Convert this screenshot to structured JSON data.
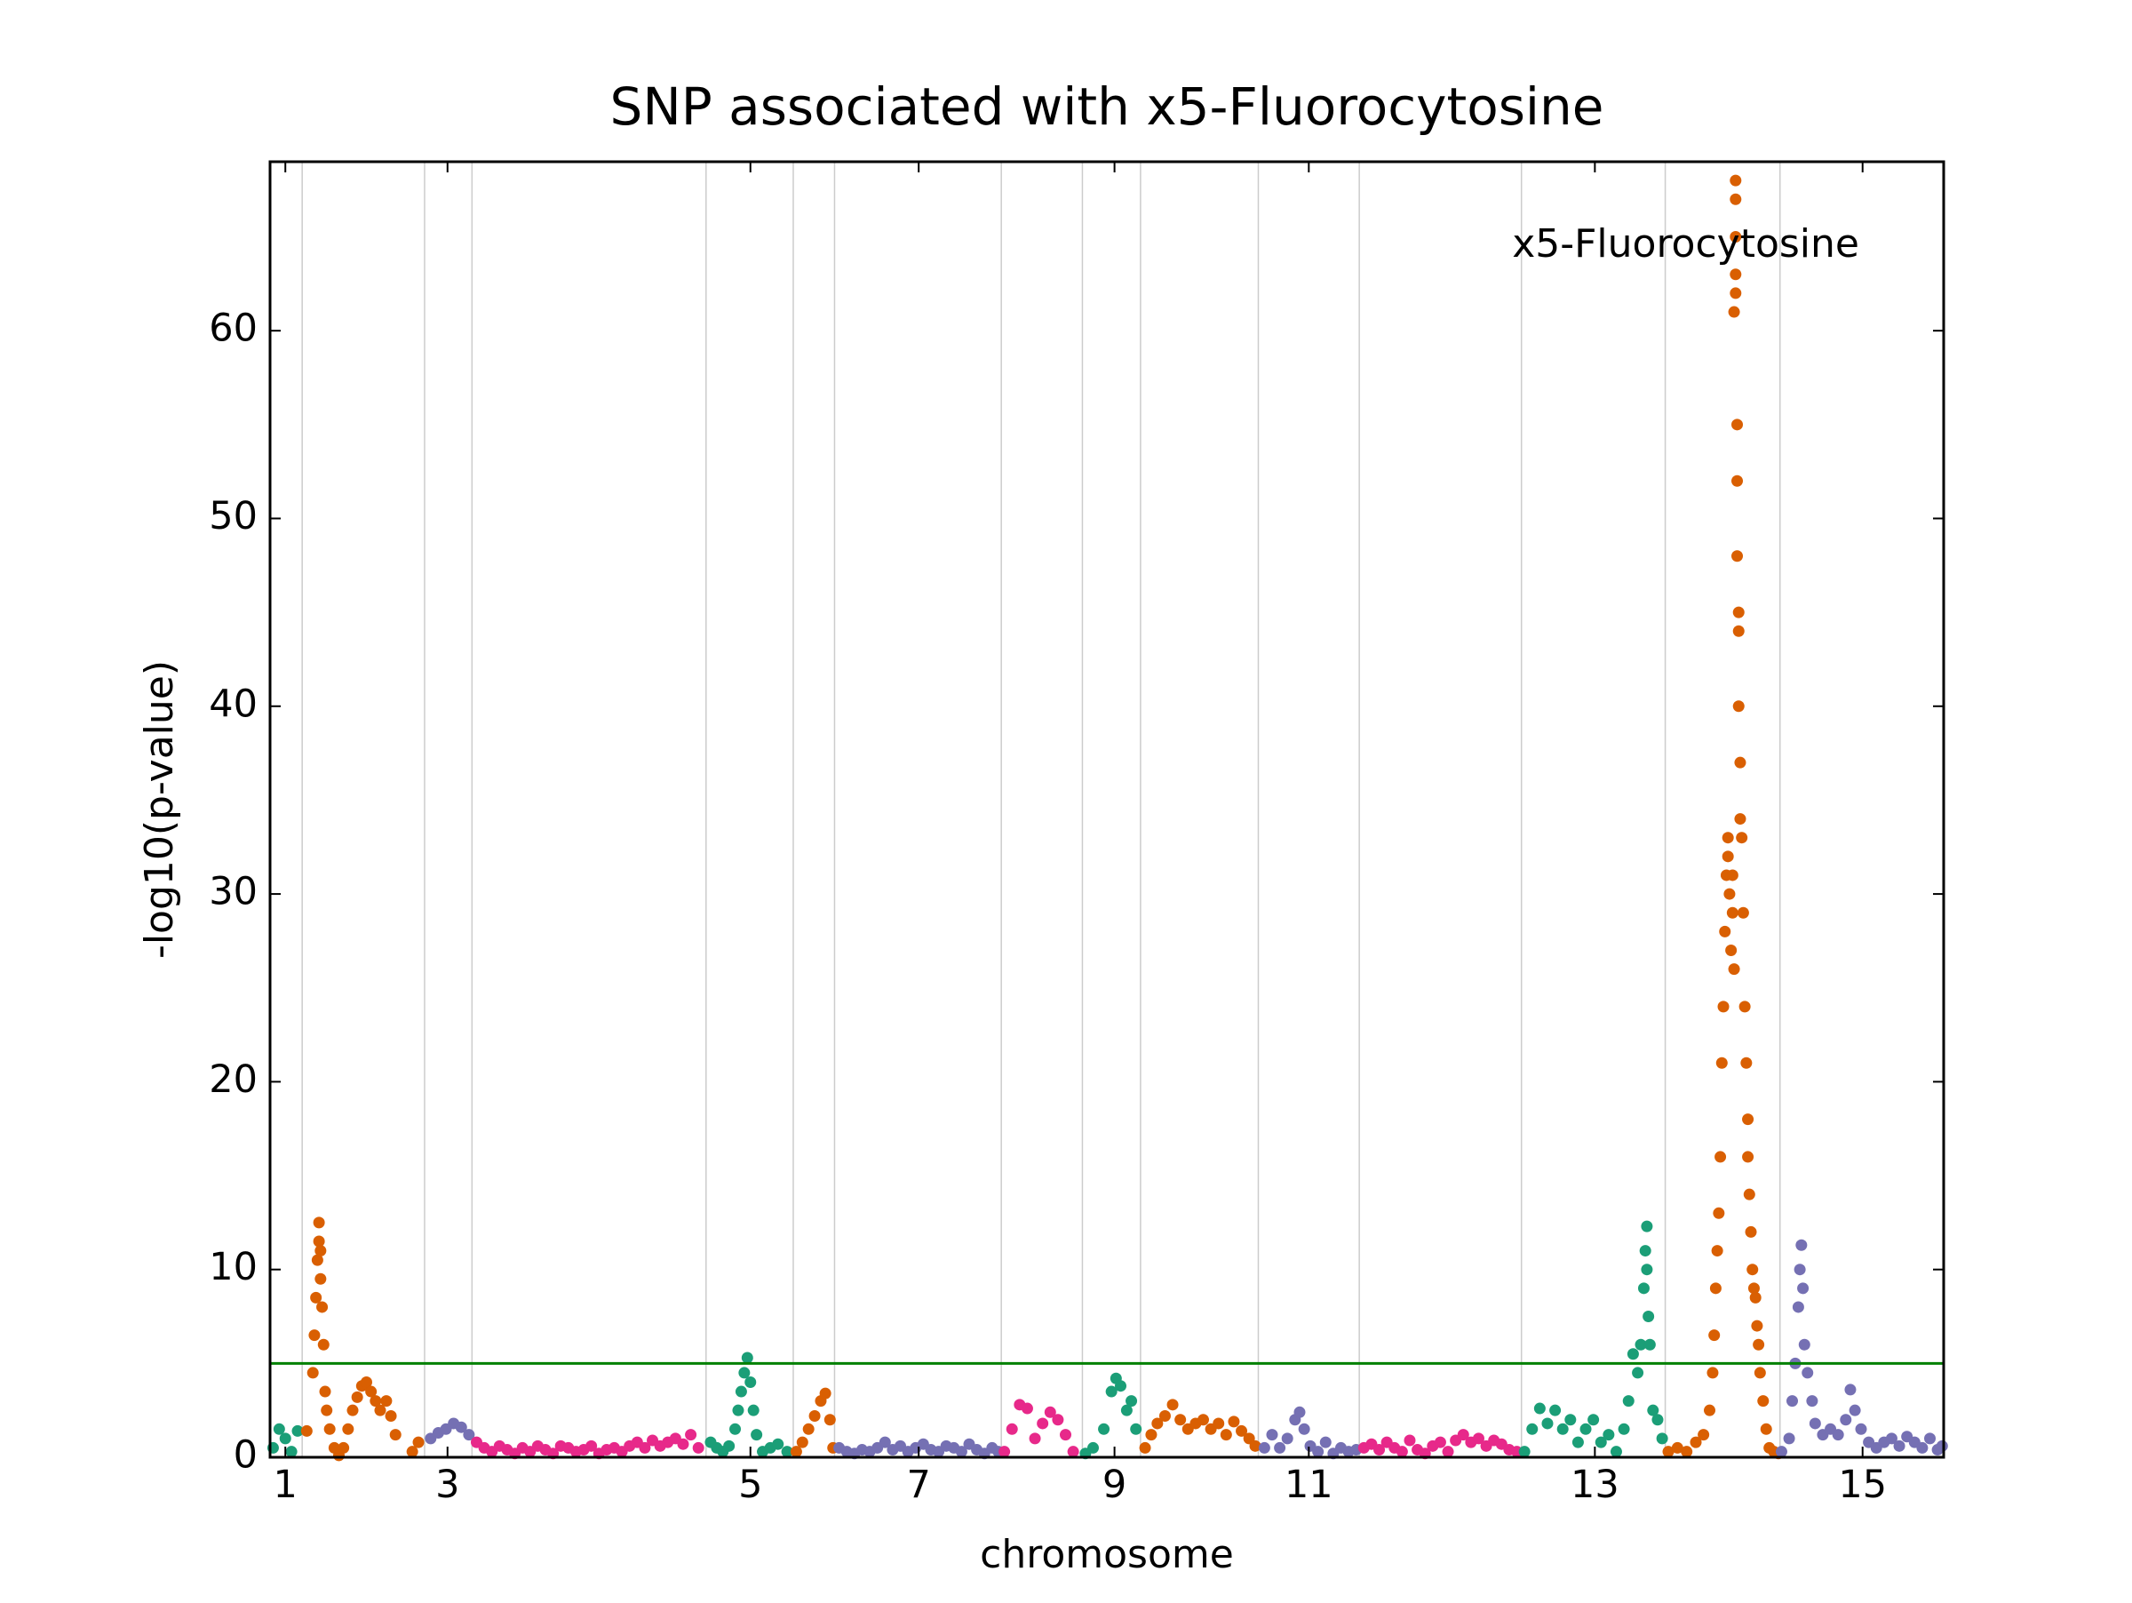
{
  "chart_data": {
    "type": "scatter",
    "title": "SNP associated with x5-Fluorocytosine",
    "xlabel": "chromosome",
    "ylabel": "-log10(p-value)",
    "annotation": "x5-Fluorocytosine",
    "xlim": [
      0,
      10.94
    ],
    "ylim": [
      0,
      69
    ],
    "xticks": [
      {
        "value": 0.1,
        "label": "1"
      },
      {
        "value": 1.16,
        "label": "3"
      },
      {
        "value": 3.14,
        "label": "5"
      },
      {
        "value": 4.24,
        "label": "7"
      },
      {
        "value": 5.52,
        "label": "9"
      },
      {
        "value": 6.79,
        "label": "11"
      },
      {
        "value": 8.66,
        "label": "13"
      },
      {
        "value": 10.41,
        "label": "15"
      }
    ],
    "yticks": [
      0,
      10,
      20,
      30,
      40,
      50,
      60
    ],
    "chromosome_boundaries": [
      0.21,
      1.01,
      1.32,
      2.85,
      3.42,
      3.69,
      4.78,
      5.31,
      5.69,
      6.46,
      7.12,
      8.18,
      9.12,
      9.87
    ],
    "boundary_color": "#cccccc",
    "threshold": 5,
    "threshold_color": "#008000",
    "series": [
      {
        "color": "#1b9e77",
        "x": [
          0.02,
          0.06,
          0.1,
          0.14,
          0.18
        ],
        "values": [
          0.5,
          1.5,
          1.0,
          0.3,
          1.4
        ]
      },
      {
        "color": "#d95f02",
        "x": [
          0.24,
          0.28,
          0.29,
          0.3,
          0.31,
          0.32,
          0.32,
          0.33,
          0.33,
          0.34,
          0.35,
          0.36,
          0.37,
          0.39,
          0.42,
          0.45,
          0.48,
          0.51,
          0.54,
          0.57,
          0.6,
          0.63,
          0.66,
          0.69,
          0.72,
          0.76,
          0.79,
          0.82,
          0.93,
          0.97
        ],
        "values": [
          1.4,
          4.5,
          6.5,
          8.5,
          10.5,
          12.5,
          11.5,
          9.5,
          11,
          8,
          6,
          3.5,
          2.5,
          1.5,
          0.5,
          0.1,
          0.5,
          1.5,
          2.5,
          3.2,
          3.8,
          4,
          3.5,
          3,
          2.5,
          3,
          2.2,
          1.2,
          0.3,
          0.8
        ]
      },
      {
        "color": "#7570b3",
        "x": [
          1.05,
          1.1,
          1.15,
          1.2,
          1.25,
          1.3
        ],
        "values": [
          1.0,
          1.3,
          1.5,
          1.8,
          1.6,
          1.2
        ]
      },
      {
        "color": "#e7298a",
        "x": [
          1.35,
          1.4,
          1.45,
          1.5,
          1.55,
          1.6,
          1.65,
          1.7,
          1.75,
          1.8,
          1.85,
          1.9,
          1.95,
          2.0,
          2.05,
          2.1,
          2.15,
          2.2,
          2.25,
          2.3,
          2.35,
          2.4,
          2.45,
          2.5,
          2.55,
          2.6,
          2.65,
          2.7,
          2.75,
          2.8
        ],
        "values": [
          0.8,
          0.5,
          0.3,
          0.6,
          0.4,
          0.2,
          0.5,
          0.3,
          0.6,
          0.4,
          0.2,
          0.6,
          0.5,
          0.3,
          0.4,
          0.6,
          0.2,
          0.4,
          0.5,
          0.3,
          0.6,
          0.8,
          0.5,
          0.9,
          0.6,
          0.8,
          1.0,
          0.7,
          1.2,
          0.5
        ]
      },
      {
        "color": "#1b9e77",
        "x": [
          2.88,
          2.92,
          2.96,
          3.0,
          3.04,
          3.06,
          3.08,
          3.1,
          3.12,
          3.14,
          3.16,
          3.18,
          3.22,
          3.27,
          3.32,
          3.38
        ],
        "values": [
          0.8,
          0.5,
          0.3,
          0.6,
          1.5,
          2.5,
          3.5,
          4.5,
          5.3,
          4.0,
          2.5,
          1.2,
          0.3,
          0.5,
          0.7,
          0.3
        ]
      },
      {
        "color": "#d95f02",
        "x": [
          3.44,
          3.48,
          3.52,
          3.56,
          3.6,
          3.63,
          3.66,
          3.68
        ],
        "values": [
          0.3,
          0.8,
          1.5,
          2.2,
          3.0,
          3.4,
          2,
          0.5
        ]
      },
      {
        "color": "#7570b3",
        "x": [
          3.72,
          3.77,
          3.82,
          3.87,
          3.92,
          3.97,
          4.02,
          4.07,
          4.12,
          4.17,
          4.22,
          4.27,
          4.32,
          4.37,
          4.42,
          4.47,
          4.52,
          4.57,
          4.62,
          4.67,
          4.72,
          4.76
        ],
        "values": [
          0.5,
          0.3,
          0.2,
          0.4,
          0.3,
          0.5,
          0.8,
          0.4,
          0.6,
          0.3,
          0.5,
          0.7,
          0.4,
          0.3,
          0.6,
          0.5,
          0.3,
          0.7,
          0.4,
          0.2,
          0.5,
          0.3
        ]
      },
      {
        "color": "#e7298a",
        "x": [
          4.8,
          4.85,
          4.9,
          4.95,
          5.0,
          5.05,
          5.1,
          5.15,
          5.2,
          5.25
        ],
        "values": [
          0.3,
          1.5,
          2.8,
          2.6,
          1,
          1.8,
          2.4,
          2,
          1.2,
          0.3
        ]
      },
      {
        "color": "#1b9e77",
        "x": [
          5.33,
          5.38,
          5.45,
          5.5,
          5.53,
          5.56,
          5.6,
          5.63,
          5.66
        ],
        "values": [
          0.2,
          0.5,
          1.5,
          3.5,
          4.2,
          3.8,
          2.5,
          3,
          1.5
        ]
      },
      {
        "color": "#d95f02",
        "x": [
          5.72,
          5.76,
          5.8,
          5.85,
          5.9,
          5.95,
          6.0,
          6.05,
          6.1,
          6.15,
          6.2,
          6.25,
          6.3,
          6.35,
          6.4,
          6.44
        ],
        "values": [
          0.5,
          1.2,
          1.8,
          2.2,
          2.8,
          2.0,
          1.5,
          1.8,
          2.0,
          1.5,
          1.8,
          1.2,
          1.9,
          1.4,
          1.0,
          0.6
        ]
      },
      {
        "color": "#7570b3",
        "x": [
          6.5,
          6.55,
          6.6,
          6.65,
          6.7,
          6.73,
          6.76,
          6.8,
          6.85,
          6.9,
          6.95,
          7.0,
          7.05,
          7.1
        ],
        "values": [
          0.5,
          1.2,
          0.5,
          1.0,
          2.0,
          2.4,
          1.5,
          0.6,
          0.3,
          0.8,
          0.2,
          0.5,
          0.3,
          0.4
        ]
      },
      {
        "color": "#e7298a",
        "x": [
          7.15,
          7.2,
          7.25,
          7.3,
          7.35,
          7.4,
          7.45,
          7.5,
          7.55,
          7.6,
          7.65,
          7.7,
          7.75,
          7.8,
          7.85,
          7.9,
          7.95,
          8.0,
          8.05,
          8.1,
          8.15
        ],
        "values": [
          0.5,
          0.7,
          0.4,
          0.8,
          0.5,
          0.3,
          0.9,
          0.4,
          0.2,
          0.6,
          0.8,
          0.3,
          0.9,
          1.2,
          0.8,
          1.0,
          0.6,
          0.9,
          0.7,
          0.4,
          0.3
        ]
      },
      {
        "color": "#1b9e77",
        "x": [
          8.2,
          8.25,
          8.3,
          8.35,
          8.4,
          8.45,
          8.5,
          8.55,
          8.6,
          8.65,
          8.7,
          8.75,
          8.8,
          8.85,
          8.88,
          8.91,
          8.94,
          8.96,
          8.98,
          8.99,
          9.0,
          9.0,
          9.01,
          9.02,
          9.04,
          9.07,
          9.1
        ],
        "values": [
          0.3,
          1.5,
          2.6,
          1.8,
          2.5,
          1.5,
          2.0,
          0.8,
          1.5,
          2.0,
          0.8,
          1.2,
          0.3,
          1.5,
          3.0,
          5.5,
          4.5,
          6,
          9,
          11,
          12.3,
          10,
          7.5,
          6,
          2.5,
          2,
          1
        ]
      },
      {
        "color": "#d95f02",
        "x": [
          9.14,
          9.2,
          9.26,
          9.32,
          9.37,
          9.41,
          9.43,
          9.44,
          9.45,
          9.46,
          9.47,
          9.48,
          9.49,
          9.5,
          9.51,
          9.52,
          9.53,
          9.53,
          9.54,
          9.55,
          9.56,
          9.56,
          9.57,
          9.57,
          9.58,
          9.58,
          9.58,
          9.58,
          9.58,
          9.59,
          9.59,
          9.59,
          9.6,
          9.6,
          9.6,
          9.61,
          9.61,
          9.62,
          9.63,
          9.64,
          9.65,
          9.66,
          9.66,
          9.67,
          9.68,
          9.69,
          9.7,
          9.71,
          9.72,
          9.73,
          9.74,
          9.76,
          9.78,
          9.8,
          9.83,
          9.86
        ],
        "values": [
          0.3,
          0.5,
          0.3,
          0.8,
          1.2,
          2.5,
          4.5,
          6.5,
          9,
          11,
          13,
          16,
          21,
          24,
          28,
          31,
          33,
          32,
          30,
          27,
          31,
          29,
          26,
          61,
          63,
          65,
          67,
          68,
          62,
          55,
          52,
          48,
          45,
          44,
          40,
          37,
          34,
          33,
          29,
          24,
          21,
          18,
          16,
          14,
          12,
          10,
          9,
          8.5,
          7,
          6,
          4.5,
          3,
          1.5,
          0.5,
          0.3,
          0.2
        ]
      },
      {
        "color": "#7570b3",
        "x": [
          9.88,
          9.93,
          9.95,
          9.97,
          9.99,
          10.0,
          10.01,
          10.02,
          10.03,
          10.05,
          10.08,
          10.1,
          10.15,
          10.2,
          10.25,
          10.3,
          10.33,
          10.36,
          10.4,
          10.45,
          10.5,
          10.55,
          10.6,
          10.65,
          10.7,
          10.75,
          10.8,
          10.85,
          10.9,
          10.93
        ],
        "values": [
          0.3,
          1,
          3,
          5,
          8,
          10,
          11.3,
          9,
          6,
          4.5,
          3,
          1.8,
          1.2,
          1.5,
          1.2,
          2,
          3.6,
          2.5,
          1.5,
          0.8,
          0.5,
          0.8,
          1.0,
          0.6,
          1.1,
          0.8,
          0.5,
          1,
          0.4,
          0.6
        ]
      }
    ]
  }
}
